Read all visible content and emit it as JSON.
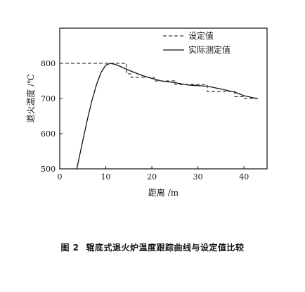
{
  "chart_data": {
    "type": "line",
    "title": "",
    "xlabel": "距离 /m",
    "ylabel": "退火温度 /℃",
    "xlim": [
      0,
      45
    ],
    "ylim": [
      500,
      900
    ],
    "x_ticks": [
      0,
      10,
      20,
      30,
      40
    ],
    "y_ticks": [
      500,
      600,
      700,
      800
    ],
    "grid": false,
    "legend_position": "top-right",
    "series": [
      {
        "name": "设定值",
        "style": "dashed",
        "points": [
          [
            0,
            800
          ],
          [
            14.5,
            800
          ],
          [
            14.5,
            770
          ],
          [
            15.5,
            770
          ],
          [
            15.5,
            760
          ],
          [
            20.5,
            760
          ],
          [
            20.5,
            750
          ],
          [
            25,
            750
          ],
          [
            25,
            740
          ],
          [
            32,
            740
          ],
          [
            32,
            720
          ],
          [
            38,
            720
          ],
          [
            38,
            705
          ],
          [
            40,
            705
          ],
          [
            40,
            700
          ],
          [
            43,
            700
          ]
        ]
      },
      {
        "name": "实际测定值",
        "style": "solid",
        "points": [
          [
            3.7,
            500
          ],
          [
            5,
            580
          ],
          [
            6,
            640
          ],
          [
            7,
            695
          ],
          [
            8,
            740
          ],
          [
            9,
            775
          ],
          [
            10,
            795
          ],
          [
            11,
            800
          ],
          [
            12,
            797
          ],
          [
            13,
            792
          ],
          [
            14,
            786
          ],
          [
            16,
            775
          ],
          [
            18,
            765
          ],
          [
            20,
            757
          ],
          [
            22,
            750
          ],
          [
            25,
            745
          ],
          [
            28,
            738
          ],
          [
            32,
            735
          ],
          [
            35,
            727
          ],
          [
            38,
            718
          ],
          [
            40,
            708
          ],
          [
            42,
            702
          ],
          [
            43,
            700
          ]
        ]
      }
    ]
  },
  "caption": {
    "number": "图 2",
    "text": "辊底式退火炉温度跟踪曲线与设定值比较"
  }
}
